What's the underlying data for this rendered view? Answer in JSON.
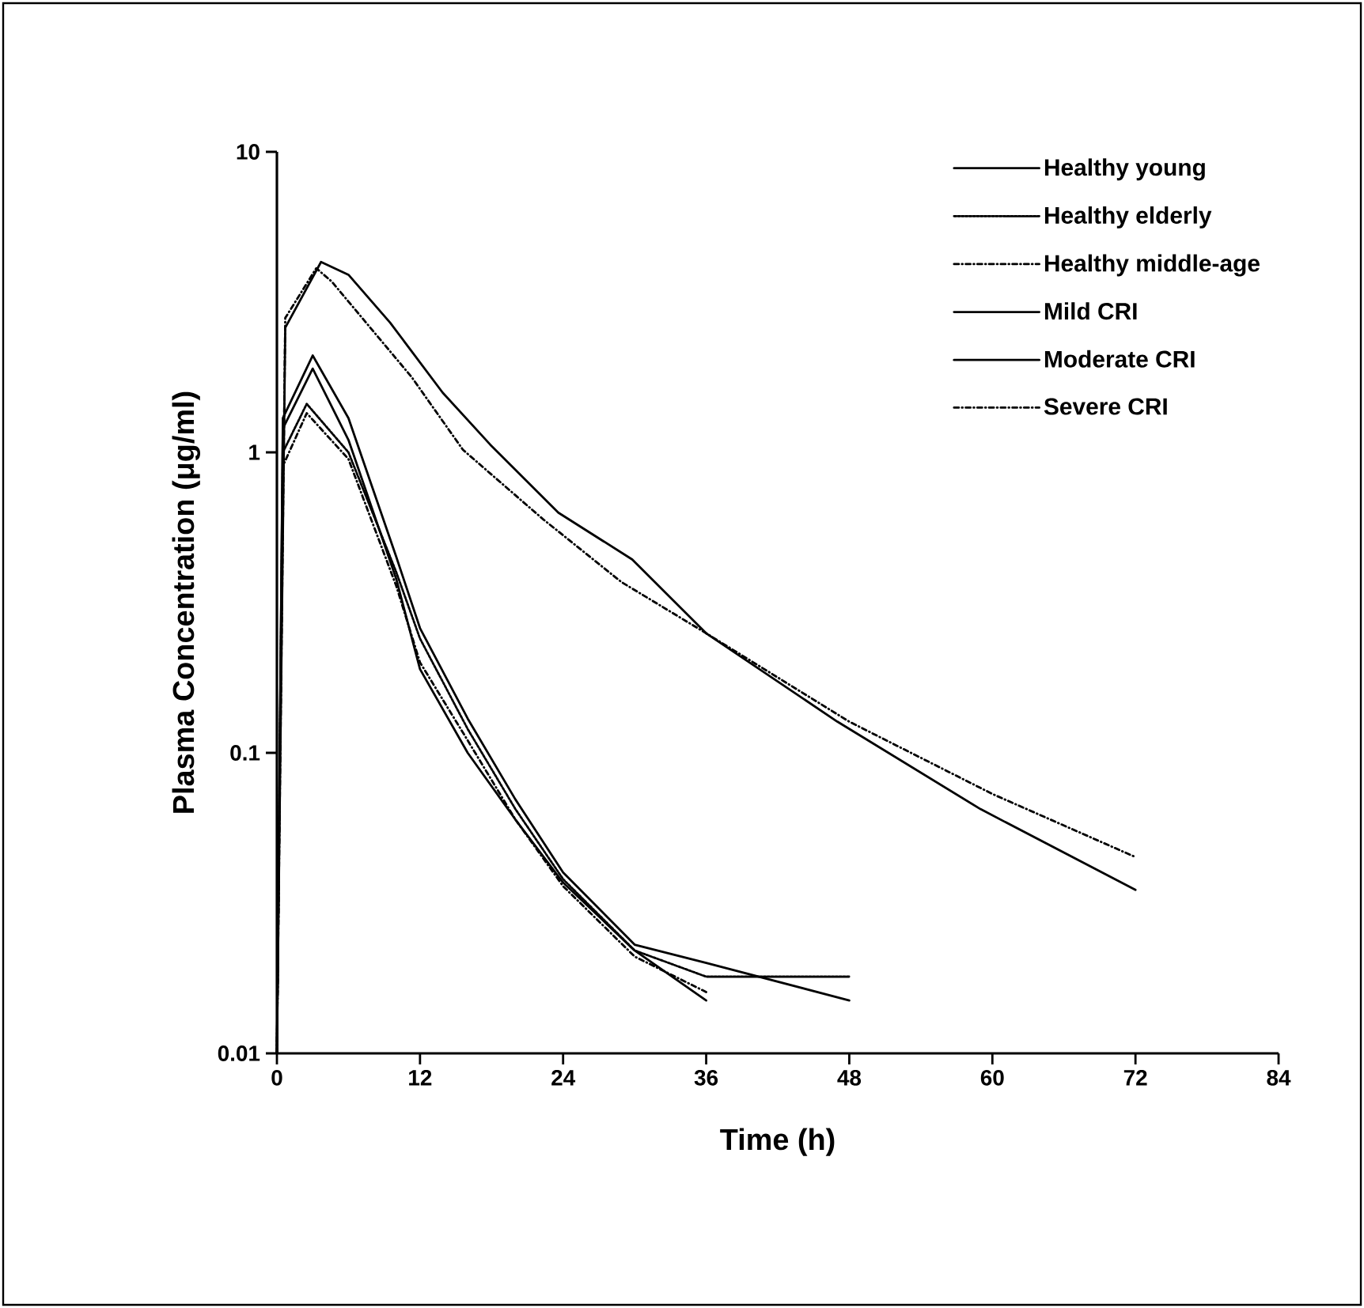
{
  "chart_data": {
    "type": "line",
    "xlabel": "Time (h)",
    "ylabel": "Plasma Concentration (μg/ml)",
    "log": "y",
    "xlim": [
      0,
      84
    ],
    "ylim": [
      0.01,
      10
    ],
    "xticks": [
      0,
      12,
      24,
      36,
      48,
      60,
      72,
      84
    ],
    "yticks": [
      0.01,
      0.1,
      1,
      10
    ],
    "legend": "top right",
    "marker": "none",
    "series": [
      {
        "name": "Healthy young",
        "color": "#000000",
        "line_style": "solid",
        "x": [
          0,
          0.5,
          3,
          6,
          10,
          12,
          16,
          20,
          24,
          30,
          36
        ],
        "values": [
          0.01,
          1.2,
          1.9,
          1.1,
          0.38,
          0.19,
          0.1,
          0.06,
          0.037,
          0.022,
          0.015
        ]
      },
      {
        "name": "Healthy elderly",
        "color": "#000000",
        "line_style": "dotted",
        "x": [
          0,
          0.5,
          2.5,
          6,
          10,
          12,
          16,
          20,
          24,
          30,
          36,
          48
        ],
        "values": [
          0.01,
          1.0,
          1.45,
          1.0,
          0.4,
          0.24,
          0.12,
          0.065,
          0.038,
          0.022,
          0.018,
          0.018
        ]
      },
      {
        "name": "Healthy middle-age",
        "color": "#000000",
        "line_style": "dashdot",
        "x": [
          0,
          0.5,
          2.5,
          6,
          10,
          12,
          16,
          20,
          24,
          30,
          36
        ],
        "values": [
          0.01,
          0.9,
          1.35,
          0.95,
          0.36,
          0.2,
          0.11,
          0.06,
          0.036,
          0.021,
          0.016
        ]
      },
      {
        "name": "Mild  CRI",
        "color": "#000000",
        "line_style": "solid",
        "x": [
          0,
          0.5,
          3,
          6,
          10,
          12,
          16,
          20,
          24,
          30,
          36,
          48
        ],
        "values": [
          0.01,
          1.3,
          2.1,
          1.3,
          0.45,
          0.26,
          0.13,
          0.07,
          0.04,
          0.023,
          0.02,
          0.015
        ]
      },
      {
        "name": "Moderate CRI",
        "color": "#000000",
        "line_style": "solid",
        "x": [
          0,
          0.7,
          3.7,
          6,
          9.5,
          13.9,
          17.9,
          23.6,
          29.8,
          36,
          47,
          59,
          72
        ],
        "values": [
          0.01,
          2.6,
          4.3,
          3.9,
          2.7,
          1.58,
          1.06,
          0.63,
          0.44,
          0.25,
          0.127,
          0.065,
          0.035
        ]
      },
      {
        "name": "Severe CRI",
        "color": "#000000",
        "line_style": "dashdot",
        "x": [
          0,
          0.7,
          3.3,
          4.6,
          11.3,
          15.6,
          22.3,
          28.9,
          36,
          48,
          60,
          72
        ],
        "values": [
          0.01,
          2.8,
          4.1,
          3.7,
          1.78,
          1.02,
          0.6,
          0.37,
          0.25,
          0.127,
          0.073,
          0.045
        ]
      }
    ]
  }
}
